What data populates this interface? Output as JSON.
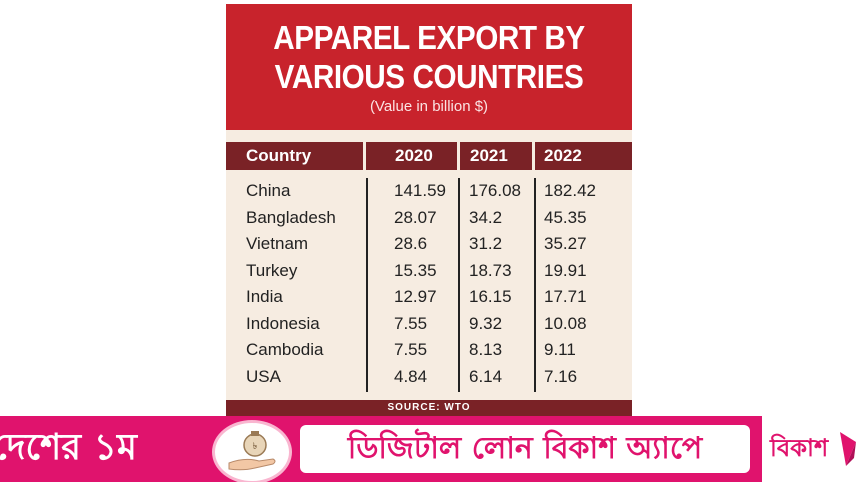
{
  "infographic": {
    "title_line1": "APPAREL EXPORT BY",
    "title_line2": "VARIOUS COUNTRIES",
    "subtitle": "(Value in billion $)",
    "headers": [
      "Country",
      "2020",
      "2021",
      "2022"
    ],
    "rows": [
      {
        "country": "China",
        "v2020": "141.59",
        "v2021": "176.08",
        "v2022": "182.42"
      },
      {
        "country": "Bangladesh",
        "v2020": "28.07",
        "v2021": "34.2",
        "v2022": "45.35"
      },
      {
        "country": "Vietnam",
        "v2020": "28.6",
        "v2021": "31.2",
        "v2022": "35.27"
      },
      {
        "country": "Turkey",
        "v2020": "15.35",
        "v2021": "18.73",
        "v2022": "19.91"
      },
      {
        "country": "India",
        "v2020": "12.97",
        "v2021": "16.15",
        "v2022": "17.71"
      },
      {
        "country": "Indonesia",
        "v2020": "7.55",
        "v2021": "9.32",
        "v2022": "10.08"
      },
      {
        "country": "Cambodia",
        "v2020": "7.55",
        "v2021": "8.13",
        "v2022": "9.11"
      },
      {
        "country": "USA",
        "v2020": "4.84",
        "v2021": "6.14",
        "v2022": "7.16"
      }
    ],
    "source": "SOURCE: WTO"
  },
  "ad": {
    "left_text": "দেশের ১ম",
    "right_text": "ডিজিটাল লোন বিকাশ অ্যাপে",
    "logo_text": "বিকাশ"
  },
  "colors": {
    "title_red": "#c8232c",
    "header_maroon": "#7a2226",
    "table_bg": "#f6ece1",
    "ad_pink": "#e0136d"
  }
}
